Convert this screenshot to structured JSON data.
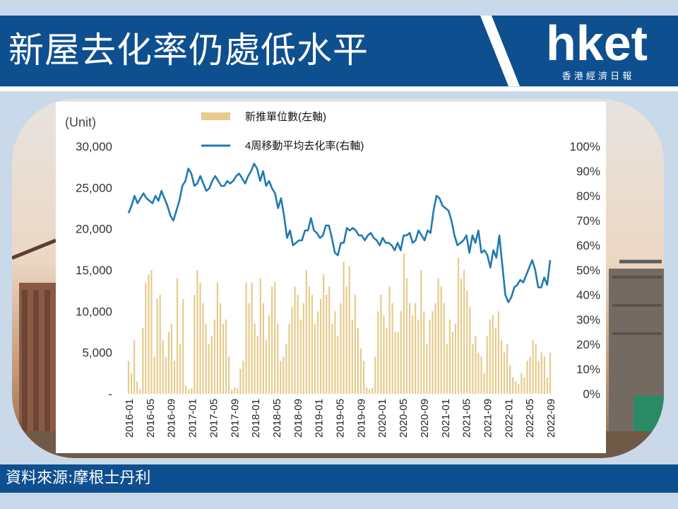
{
  "header": {
    "title": "新屋去化率仍處低水平",
    "logo_text": "hket",
    "logo_subtext": "香 港 經 濟 日 報"
  },
  "footer": {
    "source": "資料來源:摩根士丹利"
  },
  "colors": {
    "banner": "#0e4f8f",
    "background": "#c9d9ea",
    "bar": "#e6cb8c",
    "line": "#1f7ab1"
  },
  "chart_data": {
    "type": "bar+line",
    "y_left_unit": "(Unit)",
    "y_left_ticks": [
      "30,000",
      "25,000",
      "20,000",
      "15,000",
      "10,000",
      "5,000",
      "-"
    ],
    "y_left_range": [
      0,
      30000
    ],
    "y_right_ticks": [
      "100%",
      "90%",
      "80%",
      "70%",
      "60%",
      "50%",
      "40%",
      "30%",
      "20%",
      "10%",
      "0%"
    ],
    "y_right_range": [
      0,
      100
    ],
    "x_ticks": [
      "2016-01",
      "2016-05",
      "2016-09",
      "2017-01",
      "2017-05",
      "2017-09",
      "2018-01",
      "2018-05",
      "2018-09",
      "2019-01",
      "2019-05",
      "2019-09",
      "2020-01",
      "2020-05",
      "2020-09",
      "2021-01",
      "2021-05",
      "2021-09",
      "2022-01",
      "2022-05",
      "2022-09"
    ],
    "legend_position": "top-center",
    "series": [
      {
        "name": "新推單位數(左軸)",
        "axis": "left",
        "type": "bar",
        "values": [
          4000,
          2500,
          6500,
          1500,
          500,
          8000,
          13500,
          14500,
          15000,
          4500,
          11500,
          12000,
          6500,
          4500,
          7500,
          8500,
          4000,
          14000,
          6000,
          11500,
          1000,
          500,
          700,
          12000,
          15000,
          13500,
          11000,
          8500,
          6000,
          7000,
          9000,
          13500,
          11000,
          8500,
          9000,
          4500,
          500,
          800,
          700,
          3000,
          4000,
          13500,
          11000,
          13500,
          8500,
          7000,
          14000,
          11000,
          6500,
          9500,
          13000,
          13500,
          8500,
          4000,
          4500,
          6000,
          8500,
          10500,
          13000,
          12000,
          9000,
          11000,
          15000,
          13000,
          12000,
          8500,
          10000,
          11500,
          14500,
          12000,
          13000,
          8500,
          10000,
          7000,
          11000,
          16000,
          13000,
          15500,
          9000,
          12000,
          8000,
          5500,
          4000,
          800,
          500,
          700,
          4500,
          10000,
          12000,
          9500,
          8000,
          13000,
          11000,
          7500,
          7500,
          10000,
          17000,
          14000,
          11000,
          9500,
          11000,
          9000,
          15000,
          10000,
          6000,
          9000,
          10000,
          11000,
          14000,
          13000,
          11000,
          6000,
          9000,
          7500,
          8500,
          16500,
          14000,
          15000,
          12500,
          10500,
          6000,
          7000,
          5000,
          4500,
          2500,
          7000,
          9000,
          9500,
          8000,
          10000,
          6500,
          5000,
          6000,
          3500,
          2000,
          1500,
          1200,
          2500,
          2000,
          4000,
          4500,
          6500,
          6000,
          4000,
          5000,
          4500,
          2000,
          5000
        ]
      },
      {
        "name": "4周移動平均去化率(右軸)",
        "axis": "right",
        "type": "line",
        "values": [
          73,
          76,
          80,
          77,
          79,
          81,
          79,
          78,
          77,
          80,
          78,
          82,
          79,
          76,
          72,
          70,
          74,
          78,
          84,
          86,
          91,
          89,
          84,
          85,
          88,
          85,
          82,
          83,
          86,
          88,
          86,
          84,
          84,
          86,
          85,
          86,
          88,
          89,
          87,
          85,
          88,
          90,
          93,
          91,
          86,
          90,
          84,
          86,
          83,
          81,
          75,
          79,
          72,
          63,
          66,
          60,
          61,
          62,
          62,
          66,
          66,
          71,
          66,
          65,
          63,
          64,
          68,
          68,
          63,
          57,
          56,
          61,
          61,
          67,
          66,
          67,
          66,
          64,
          64,
          62,
          64,
          65,
          63,
          62,
          60,
          63,
          61,
          61,
          60,
          58,
          61,
          58,
          64,
          64,
          65,
          61,
          62,
          66,
          64,
          62,
          66,
          65,
          74,
          80,
          79,
          76,
          75,
          74,
          70,
          64,
          60,
          61,
          62,
          64,
          57,
          64,
          61,
          66,
          57,
          58,
          56,
          51,
          58,
          55,
          64,
          52,
          40,
          37,
          39,
          43,
          44,
          46,
          45,
          48,
          51,
          54,
          50,
          43,
          43,
          47,
          44,
          54
        ]
      }
    ]
  }
}
